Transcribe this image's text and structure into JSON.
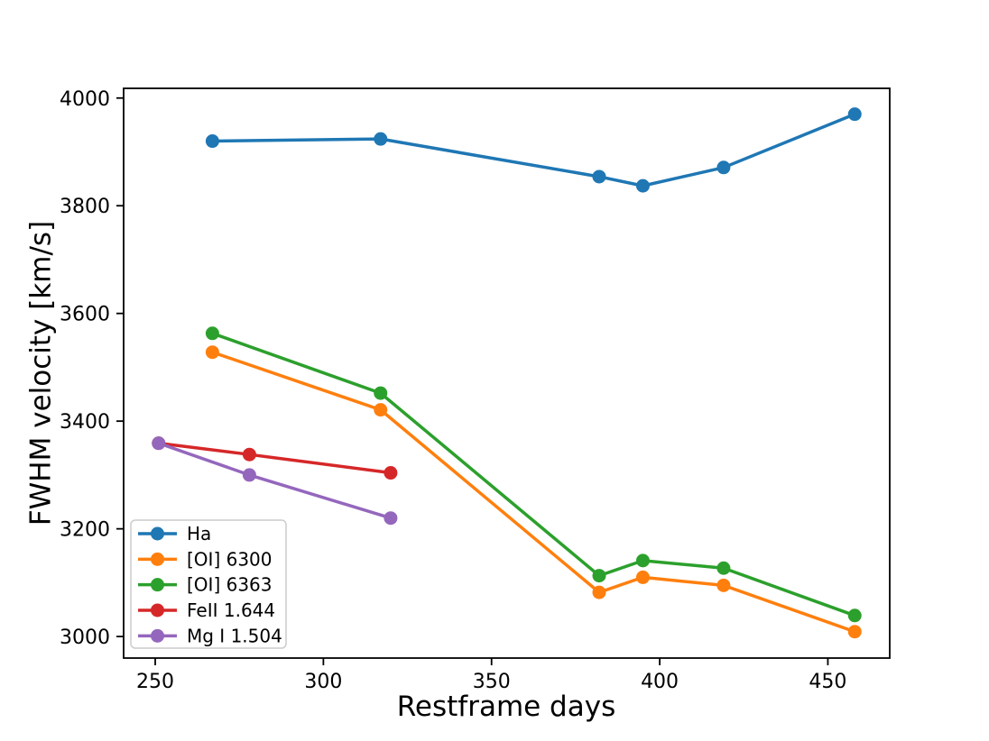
{
  "figure": {
    "background": "#ffffff",
    "text_color": "#000000",
    "spine_color": "#000000"
  },
  "chart_data": {
    "type": "line",
    "title": "",
    "xlabel": "Restframe days",
    "ylabel": "FWHM velocity [km/s]",
    "xlim": [
      240.6,
      468.4
    ],
    "ylim": [
      2960,
      4018
    ],
    "xticks": [
      250,
      300,
      350,
      400,
      450
    ],
    "yticks": [
      3000,
      3200,
      3400,
      3600,
      3800,
      4000
    ],
    "grid": false,
    "marker": "circle",
    "legend_position": "lower left",
    "series": [
      {
        "name": "Ha",
        "color": "#1f77b4",
        "x": [
          267,
          317,
          382,
          395,
          419,
          458
        ],
        "y": [
          3920,
          3924,
          3854,
          3837,
          3871,
          3970
        ]
      },
      {
        "name": "[OI] 6300",
        "color": "#ff7f0e",
        "x": [
          267,
          317,
          382,
          395,
          419,
          458
        ],
        "y": [
          3528,
          3421,
          3082,
          3110,
          3095,
          3009
        ]
      },
      {
        "name": "[OI] 6363",
        "color": "#2ca02c",
        "x": [
          267,
          317,
          382,
          395,
          419,
          458
        ],
        "y": [
          3563,
          3452,
          3113,
          3141,
          3127,
          3039
        ]
      },
      {
        "name": "FeII 1.644",
        "color": "#d62728",
        "x": [
          251,
          278,
          320
        ],
        "y": [
          3359,
          3338,
          3304
        ]
      },
      {
        "name": "Mg I 1.504",
        "color": "#9467bd",
        "x": [
          251,
          278,
          320
        ],
        "y": [
          3359,
          3300,
          3220
        ]
      }
    ]
  }
}
